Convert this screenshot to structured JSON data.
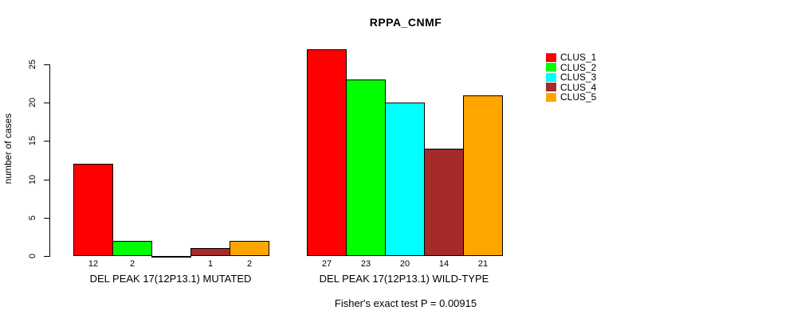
{
  "chart_data": {
    "type": "bar",
    "title": "RPPA_CNMF",
    "ylabel": "number of cases",
    "xlabel": "",
    "caption": "Fisher's exact test P = 0.00915",
    "ylim": [
      0,
      27
    ],
    "yticks": [
      0,
      5,
      10,
      15,
      20,
      25
    ],
    "grid": false,
    "legend_position": "top-right",
    "legend_entries": [
      "CLUS_1",
      "CLUS_2",
      "CLUS_3",
      "CLUS_4",
      "CLUS_5"
    ],
    "series_colors": [
      "#ff0000",
      "#00ff00",
      "#00ffff",
      "#a52a2a",
      "#ffa500"
    ],
    "groups": [
      {
        "label": "DEL PEAK 17(12P13.1) MUTATED",
        "values": [
          12,
          2,
          0,
          1,
          2
        ],
        "bar_labels": [
          "12",
          "2",
          "",
          "1",
          "2"
        ]
      },
      {
        "label": "DEL PEAK 17(12P13.1) WILD-TYPE",
        "values": [
          27,
          23,
          20,
          14,
          21
        ],
        "bar_labels": [
          "27",
          "23",
          "20",
          "14",
          "21"
        ]
      }
    ]
  }
}
